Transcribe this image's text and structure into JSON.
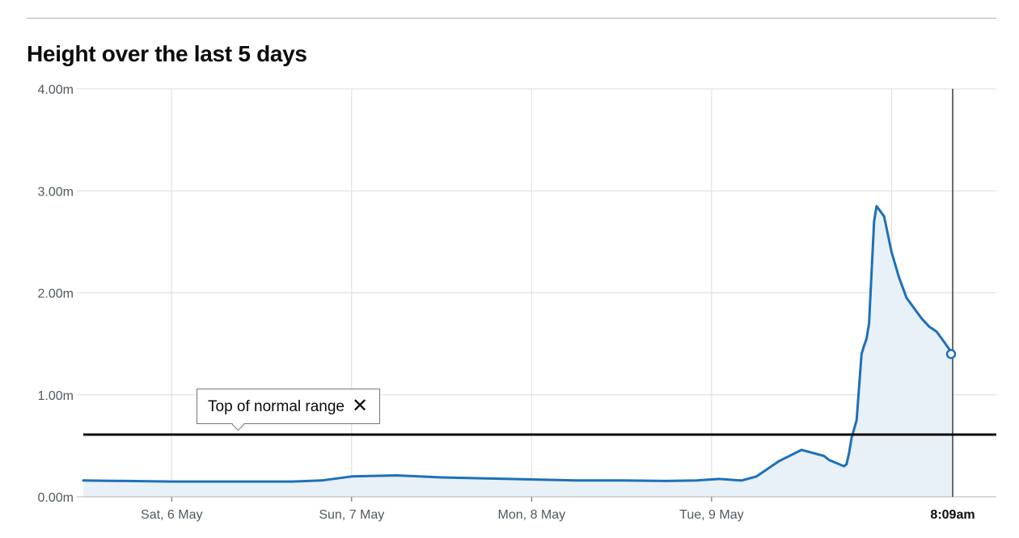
{
  "title": "Height over the last 5 days",
  "tooltip": {
    "label": "Top of normal range",
    "close_symbol": "✕",
    "close_icon": "close-icon"
  },
  "colors": {
    "line": "#1d70b8",
    "area": "#e8f0f8",
    "threshold": "#0b0c0c",
    "grid": "#dcdcdc",
    "marker": "#1d70b8"
  },
  "chart_data": {
    "type": "area",
    "title": "Height over the last 5 days",
    "xlabel": "",
    "ylabel": "",
    "ylim": [
      0,
      4
    ],
    "y_ticks": [
      0,
      1,
      2,
      3,
      4
    ],
    "y_tick_labels": [
      "0.00m",
      "1.00m",
      "2.00m",
      "3.00m",
      "4.00m"
    ],
    "xlim": [
      "2023-05-05 12:13",
      "2023-05-10 08:09"
    ],
    "x_ticks": [
      "2023-05-06 00:00",
      "2023-05-07 00:00",
      "2023-05-08 00:00",
      "2023-05-09 00:00"
    ],
    "x_tick_labels": [
      "Sat, 6 May",
      "Sun, 7 May",
      "Mon, 8 May",
      "Tue, 9 May"
    ],
    "x_grid_extra": [
      "2023-05-10 00:00"
    ],
    "current_label": "8:09am",
    "current_time": "2023-05-10 08:09",
    "current_value": 1.4,
    "threshold": {
      "label": "Top of normal range",
      "value": 0.61
    },
    "grid": true,
    "series": [
      {
        "x": [
          "2023-05-05 12:13",
          "2023-05-05 18:00",
          "2023-05-06 00:00",
          "2023-05-06 06:00",
          "2023-05-06 12:00",
          "2023-05-06 16:00",
          "2023-05-06 20:00",
          "2023-05-07 00:00",
          "2023-05-07 06:00",
          "2023-05-07 12:00",
          "2023-05-07 18:00",
          "2023-05-08 00:00",
          "2023-05-08 06:00",
          "2023-05-08 12:00",
          "2023-05-08 18:00",
          "2023-05-08 22:00",
          "2023-05-09 00:00",
          "2023-05-09 01:00",
          "2023-05-09 02:00",
          "2023-05-09 03:00",
          "2023-05-09 04:00",
          "2023-05-09 06:00",
          "2023-05-09 09:00",
          "2023-05-09 12:00",
          "2023-05-09 15:00",
          "2023-05-09 15:40",
          "2023-05-09 16:40",
          "2023-05-09 17:20",
          "2023-05-09 17:40",
          "2023-05-09 18:00",
          "2023-05-09 18:20",
          "2023-05-09 18:40",
          "2023-05-09 19:20",
          "2023-05-09 20:00",
          "2023-05-09 20:20",
          "2023-05-09 20:40",
          "2023-05-09 21:00",
          "2023-05-09 21:40",
          "2023-05-09 22:00",
          "2023-05-09 23:00",
          "2023-05-10 00:00",
          "2023-05-10 01:00",
          "2023-05-10 02:00",
          "2023-05-10 03:00",
          "2023-05-10 04:00",
          "2023-05-10 05:00",
          "2023-05-10 06:00",
          "2023-05-10 07:00",
          "2023-05-10 08:09"
        ],
        "values": [
          0.16,
          0.155,
          0.15,
          0.15,
          0.15,
          0.15,
          0.16,
          0.2,
          0.21,
          0.19,
          0.18,
          0.17,
          0.16,
          0.16,
          0.155,
          0.16,
          0.17,
          0.175,
          0.17,
          0.165,
          0.16,
          0.2,
          0.35,
          0.46,
          0.4,
          0.36,
          0.33,
          0.31,
          0.3,
          0.32,
          0.43,
          0.58,
          0.75,
          1.4,
          1.48,
          1.55,
          1.7,
          2.7,
          2.85,
          2.75,
          2.4,
          2.15,
          1.95,
          1.85,
          1.75,
          1.67,
          1.62,
          1.52,
          1.4
        ]
      }
    ]
  }
}
